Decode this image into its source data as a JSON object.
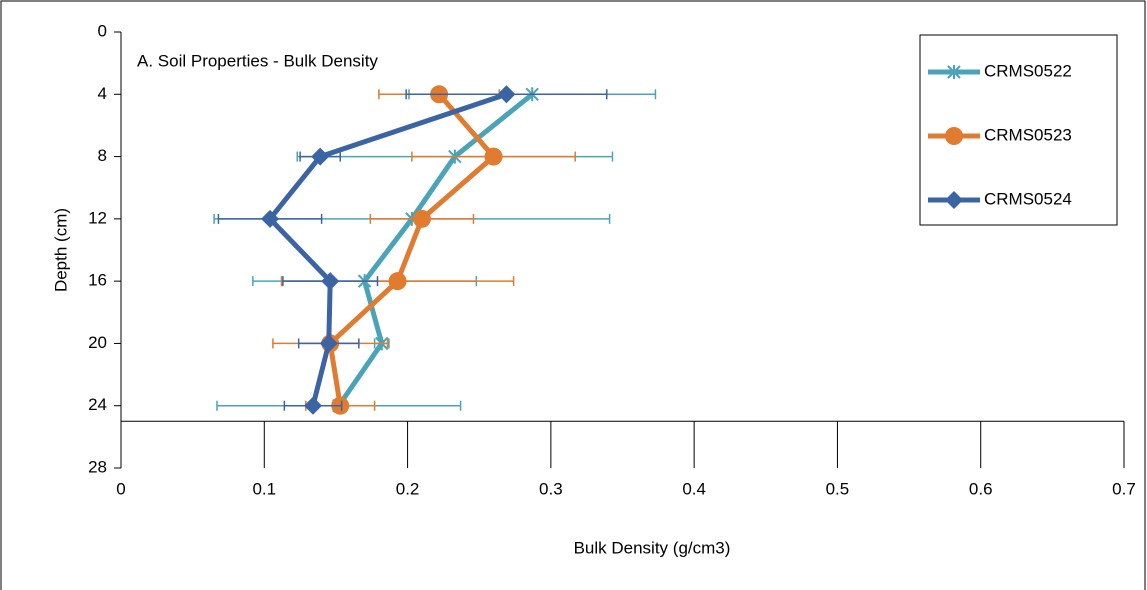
{
  "chart_data": {
    "type": "line",
    "title": "A. Soil Properties - Bulk Density",
    "x_label": "Bulk Density (g/cm3)",
    "y_label": "Depth (cm)",
    "depths": [
      4,
      8,
      12,
      16,
      20,
      24
    ],
    "series": [
      {
        "name": "CRMS0522",
        "color": "#4aa3b8",
        "marker": "star",
        "values": [
          0.287,
          0.233,
          0.203,
          0.17,
          0.182,
          0.152
        ],
        "errors": [
          0.086,
          0.11,
          0.138,
          0.078,
          0.005,
          0.085
        ]
      },
      {
        "name": "CRMS0523",
        "color": "#e07b30",
        "marker": "circle",
        "values": [
          0.222,
          0.26,
          0.21,
          0.193,
          0.146,
          0.153
        ],
        "errors": [
          0.042,
          0.057,
          0.036,
          0.081,
          0.04,
          0.024
        ]
      },
      {
        "name": "CRMS0524",
        "color": "#3a64a4",
        "marker": "diamond",
        "values": [
          0.269,
          0.139,
          0.104,
          0.146,
          0.145,
          0.134
        ],
        "errors": [
          0.07,
          0.014,
          0.036,
          0.033,
          0.021,
          0.02
        ]
      }
    ],
    "xlim": [
      0,
      0.7
    ],
    "xticks": [
      0,
      0.1,
      0.2,
      0.3,
      0.4,
      0.5,
      0.6,
      0.7
    ],
    "ylim": [
      0,
      28
    ],
    "yticks": [
      0,
      4,
      8,
      12,
      16,
      20,
      24,
      28
    ],
    "y_reversed": true,
    "x_axis_at": 25,
    "legend": "top-right"
  }
}
